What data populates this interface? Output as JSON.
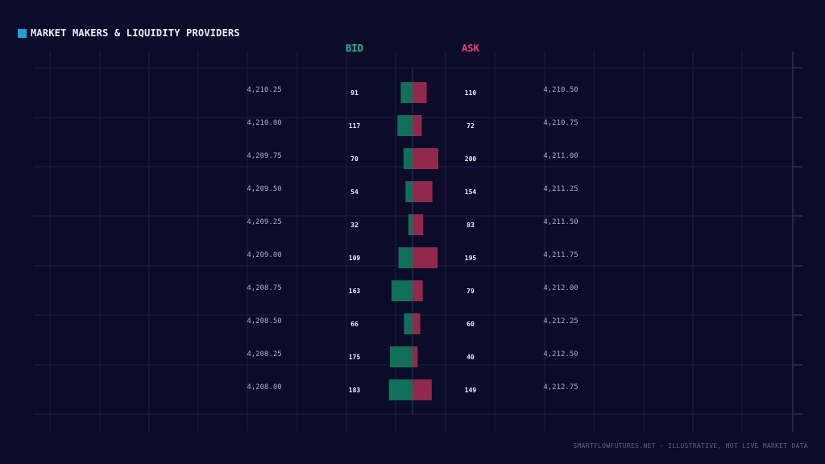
{
  "header": {
    "title": "MARKET MAKERS & LIQUIDITY PROVIDERS"
  },
  "footer": {
    "text": "SMARTFLOWFUTURES.NET · ILLUSTRATIVE, NOT LIVE MARKET DATA"
  },
  "colors": {
    "background": "#0b0c2a",
    "accent": "#1aa3d9",
    "bid": "#11705a",
    "ask": "#93284d",
    "bid_label": "#25c08a",
    "ask_label": "#ef3f73",
    "price_text": "#a8aec8",
    "size_text": "#eef0fa",
    "grid": "#1b1f42"
  },
  "chart_data": {
    "type": "bar",
    "bid_label": "BID",
    "ask_label": "ASK",
    "levels": [
      {
        "bid_price": "4,210.25",
        "bid": 91,
        "ask": 110,
        "ask_price": "4,210.50"
      },
      {
        "bid_price": "4,210.00",
        "bid": 117,
        "ask": 72,
        "ask_price": "4,210.75"
      },
      {
        "bid_price": "4,209.75",
        "bid": 70,
        "ask": 200,
        "ask_price": "4,211.00"
      },
      {
        "bid_price": "4,209.50",
        "bid": 54,
        "ask": 154,
        "ask_price": "4,211.25"
      },
      {
        "bid_price": "4,209.25",
        "bid": 32,
        "ask": 83,
        "ask_price": "4,211.50"
      },
      {
        "bid_price": "4,209.00",
        "bid": 109,
        "ask": 195,
        "ask_price": "4,211.75"
      },
      {
        "bid_price": "4,208.75",
        "bid": 163,
        "ask": 79,
        "ask_price": "4,212.00"
      },
      {
        "bid_price": "4,208.50",
        "bid": 66,
        "ask": 60,
        "ask_price": "4,212.25"
      },
      {
        "bid_price": "4,208.25",
        "bid": 175,
        "ask": 40,
        "ask_price": "4,212.50"
      },
      {
        "bid_price": "4,208.00",
        "bid": 183,
        "ask": 149,
        "ask_price": "4,212.75"
      }
    ],
    "xlim": [
      0,
      200
    ],
    "grid": true
  }
}
